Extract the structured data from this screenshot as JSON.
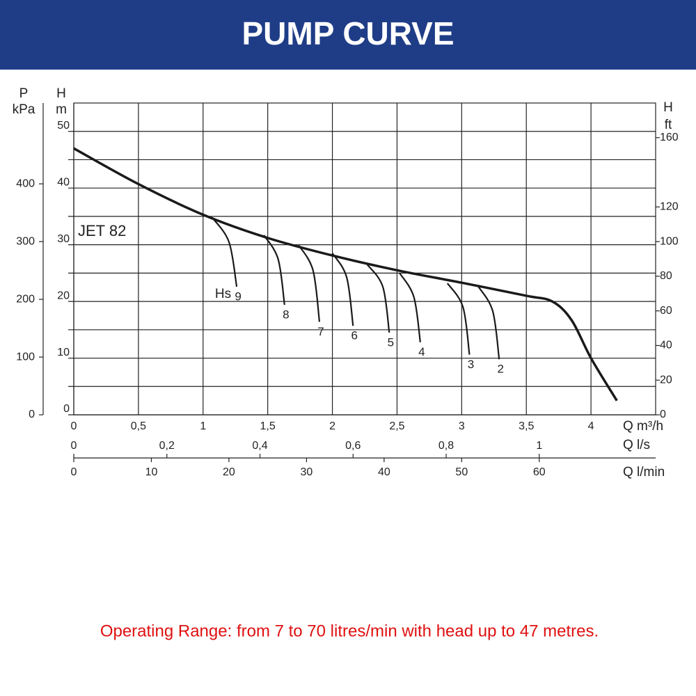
{
  "chart_data": {
    "type": "line",
    "title": "PUMP CURVE",
    "caption": "Operating Range: from 7 to 70 litres/min with head up to 47 metres.",
    "xlabel": "Q m³/h",
    "xlim": [
      0,
      4.5
    ],
    "xticks": [
      0,
      {
        "value": 0.5,
        "label": "0,5"
      },
      1,
      {
        "value": 1.5,
        "label": "1,5"
      },
      2,
      {
        "value": 2.5,
        "label": "2,5"
      },
      3,
      {
        "value": 3.5,
        "label": "3,5"
      },
      4
    ],
    "x2label": "Q l/s",
    "x2lim": [
      0,
      1.25
    ],
    "x2ticks": [
      0,
      {
        "value": 0.2,
        "label": "0,2"
      },
      {
        "value": 0.4,
        "label": "0,4"
      },
      {
        "value": 0.6,
        "label": "0,6"
      },
      {
        "value": 0.8,
        "label": "0,8"
      },
      1
    ],
    "x3label": "Q l/min",
    "x3lim": [
      0,
      75
    ],
    "x3ticks": [
      0,
      10,
      20,
      30,
      40,
      50,
      60
    ],
    "ylabel": [
      "H",
      "m"
    ],
    "ylim": [
      0,
      55
    ],
    "yticks": [
      0,
      10,
      20,
      30,
      40,
      50
    ],
    "yminorticks": [
      5,
      15,
      25,
      35,
      45
    ],
    "y2label": [
      "P",
      "kPa"
    ],
    "y2lim": [
      0,
      540
    ],
    "y2ticks": [
      0,
      100,
      200,
      300,
      400
    ],
    "y3label": [
      "H",
      "ft"
    ],
    "y3lim": [
      0,
      180
    ],
    "y3ticks": [
      0,
      20,
      40,
      60,
      80,
      100,
      120,
      160
    ],
    "grid": true,
    "hs_label": "Hs",
    "series": [
      {
        "name": "JET 82",
        "color": "#1a1a1a",
        "x": [
          0,
          0.5,
          1,
          1.5,
          2,
          2.5,
          3,
          3.5,
          3.7,
          3.85,
          4,
          4.2
        ],
        "values": [
          47,
          40.7,
          35.3,
          31.2,
          28.1,
          25.5,
          23.3,
          21,
          20,
          16.7,
          10,
          2.5
        ]
      },
      {
        "name": "9",
        "color": "#1a1a1a",
        "x": [
          1.07,
          1.2,
          1.26
        ],
        "values": [
          34.8,
          30.5,
          22.6
        ]
      },
      {
        "name": "8",
        "color": "#1a1a1a",
        "x": [
          1.47,
          1.58,
          1.63
        ],
        "values": [
          31.7,
          27.5,
          19.4
        ]
      },
      {
        "name": "7",
        "color": "#1a1a1a",
        "x": [
          1.74,
          1.85,
          1.9
        ],
        "values": [
          29.9,
          25.5,
          16.4
        ]
      },
      {
        "name": "6",
        "color": "#1a1a1a",
        "x": [
          2,
          2.11,
          2.16
        ],
        "values": [
          28.5,
          24.3,
          15.7
        ]
      },
      {
        "name": "5",
        "color": "#1a1a1a",
        "x": [
          2.27,
          2.39,
          2.44
        ],
        "values": [
          26.5,
          22.6,
          14.5
        ]
      },
      {
        "name": "4",
        "color": "#1a1a1a",
        "x": [
          2.52,
          2.63,
          2.68
        ],
        "values": [
          25,
          20.8,
          12.8
        ]
      },
      {
        "name": "3",
        "color": "#1a1a1a",
        "x": [
          2.89,
          3.01,
          3.06
        ],
        "values": [
          23.2,
          19,
          10.6
        ]
      },
      {
        "name": "2",
        "color": "#1a1a1a",
        "x": [
          3.13,
          3.24,
          3.29
        ],
        "values": [
          22.6,
          18.3,
          9.8
        ]
      }
    ]
  }
}
